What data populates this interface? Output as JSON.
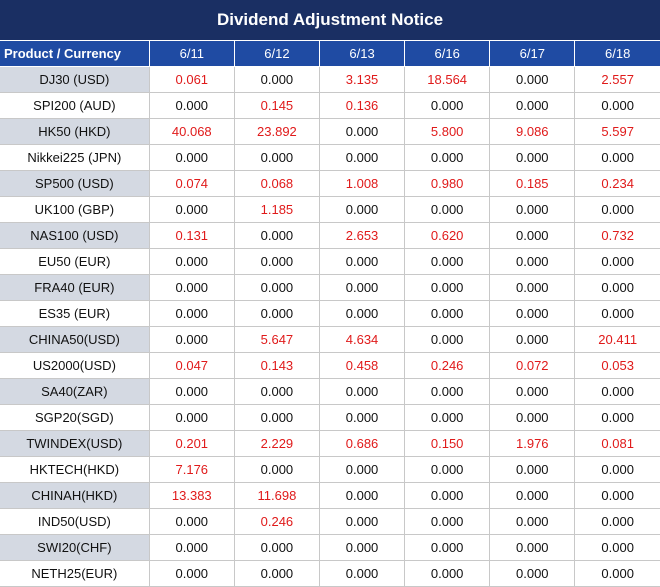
{
  "title": "Dividend Adjustment Notice",
  "colors": {
    "title_bg": "#1a2f63",
    "header_bg": "#1f4ba3",
    "positive": "#e01a1a",
    "stripe": "#d4d9e2"
  },
  "header": {
    "product_label": "Product / Currency",
    "dates": [
      "6/11",
      "6/12",
      "6/13",
      "6/16",
      "6/17",
      "6/18"
    ]
  },
  "rows": [
    {
      "product": "DJ30 (USD)",
      "values": [
        "0.061",
        "0.000",
        "3.135",
        "18.564",
        "0.000",
        "2.557"
      ]
    },
    {
      "product": "SPI200 (AUD)",
      "values": [
        "0.000",
        "0.145",
        "0.136",
        "0.000",
        "0.000",
        "0.000"
      ]
    },
    {
      "product": "HK50 (HKD)",
      "values": [
        "40.068",
        "23.892",
        "0.000",
        "5.800",
        "9.086",
        "5.597"
      ]
    },
    {
      "product": "Nikkei225 (JPN)",
      "values": [
        "0.000",
        "0.000",
        "0.000",
        "0.000",
        "0.000",
        "0.000"
      ]
    },
    {
      "product": "SP500 (USD)",
      "values": [
        "0.074",
        "0.068",
        "1.008",
        "0.980",
        "0.185",
        "0.234"
      ]
    },
    {
      "product": "UK100 (GBP)",
      "values": [
        "0.000",
        "1.185",
        "0.000",
        "0.000",
        "0.000",
        "0.000"
      ]
    },
    {
      "product": "NAS100 (USD)",
      "values": [
        "0.131",
        "0.000",
        "2.653",
        "0.620",
        "0.000",
        "0.732"
      ]
    },
    {
      "product": "EU50 (EUR)",
      "values": [
        "0.000",
        "0.000",
        "0.000",
        "0.000",
        "0.000",
        "0.000"
      ]
    },
    {
      "product": "FRA40 (EUR)",
      "values": [
        "0.000",
        "0.000",
        "0.000",
        "0.000",
        "0.000",
        "0.000"
      ]
    },
    {
      "product": "ES35 (EUR)",
      "values": [
        "0.000",
        "0.000",
        "0.000",
        "0.000",
        "0.000",
        "0.000"
      ]
    },
    {
      "product": "CHINA50(USD)",
      "values": [
        "0.000",
        "5.647",
        "4.634",
        "0.000",
        "0.000",
        "20.411"
      ]
    },
    {
      "product": "US2000(USD)",
      "values": [
        "0.047",
        "0.143",
        "0.458",
        "0.246",
        "0.072",
        "0.053"
      ]
    },
    {
      "product": "SA40(ZAR)",
      "values": [
        "0.000",
        "0.000",
        "0.000",
        "0.000",
        "0.000",
        "0.000"
      ]
    },
    {
      "product": "SGP20(SGD)",
      "values": [
        "0.000",
        "0.000",
        "0.000",
        "0.000",
        "0.000",
        "0.000"
      ]
    },
    {
      "product": "TWINDEX(USD)",
      "values": [
        "0.201",
        "2.229",
        "0.686",
        "0.150",
        "1.976",
        "0.081"
      ]
    },
    {
      "product": "HKTECH(HKD)",
      "values": [
        "7.176",
        "0.000",
        "0.000",
        "0.000",
        "0.000",
        "0.000"
      ]
    },
    {
      "product": "CHINAH(HKD)",
      "values": [
        "13.383",
        "11.698",
        "0.000",
        "0.000",
        "0.000",
        "0.000"
      ]
    },
    {
      "product": "IND50(USD)",
      "values": [
        "0.000",
        "0.246",
        "0.000",
        "0.000",
        "0.000",
        "0.000"
      ]
    },
    {
      "product": "SWI20(CHF)",
      "values": [
        "0.000",
        "0.000",
        "0.000",
        "0.000",
        "0.000",
        "0.000"
      ]
    },
    {
      "product": "NETH25(EUR)",
      "values": [
        "0.000",
        "0.000",
        "0.000",
        "0.000",
        "0.000",
        "0.000"
      ]
    }
  ]
}
